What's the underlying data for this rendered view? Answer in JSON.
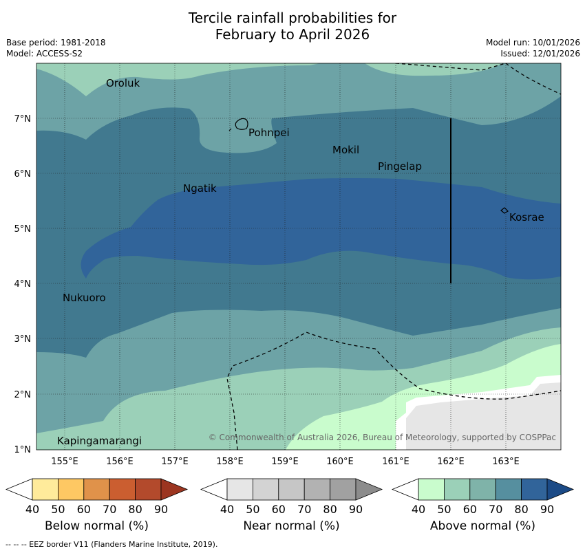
{
  "title": {
    "line1": "Tercile rainfall probabilities for",
    "line2": "February to April 2026"
  },
  "meta": {
    "base_period": "Base period: 1981-2018",
    "model": "Model: ACCESS-S2",
    "model_run": "Model run: 10/01/2026",
    "issued": "Issued: 12/01/2026"
  },
  "map": {
    "lon_ticks": [
      "155°E",
      "156°E",
      "157°E",
      "158°E",
      "159°E",
      "160°E",
      "161°E",
      "162°E",
      "163°E"
    ],
    "lat_ticks": [
      "1°N",
      "2°N",
      "3°N",
      "4°N",
      "5°N",
      "6°N",
      "7°N"
    ],
    "places": [
      "Oroluk",
      "Pohnpei",
      "Mokil",
      "Pingelap",
      "Ngatik",
      "Kosrae",
      "Nukuoro",
      "Kapingamarangi"
    ],
    "copyright": "© Commonwealth of Australia 2026, Bureau of Meteorology, supported by COSPPac"
  },
  "colorbars": [
    {
      "label": "Below normal (%)",
      "ticks": [
        "40",
        "50",
        "60",
        "70",
        "80",
        "90"
      ],
      "colors": [
        "#ffffff",
        "#ffeb9b",
        "#fec863",
        "#e0924a",
        "#cb5e30",
        "#b34a2c",
        "#9c3520"
      ]
    },
    {
      "label": "Near normal (%)",
      "ticks": [
        "40",
        "50",
        "60",
        "70",
        "80",
        "90"
      ],
      "colors": [
        "#ffffff",
        "#e6e6e6",
        "#d3d3d3",
        "#c6c6c6",
        "#b2b2b2",
        "#a1a1a1",
        "#8c8c8c"
      ]
    },
    {
      "label": "Above normal (%)",
      "ticks": [
        "40",
        "50",
        "60",
        "70",
        "80",
        "90"
      ],
      "colors": [
        "#ffffff",
        "#c9fccd",
        "#9bd0b8",
        "#7fb3a9",
        "#568f9f",
        "#31649a",
        "#1b4a86"
      ]
    }
  ],
  "footnote": "--  --  -- EEZ border V11 (Flanders Marine Institute, 2019)."
}
